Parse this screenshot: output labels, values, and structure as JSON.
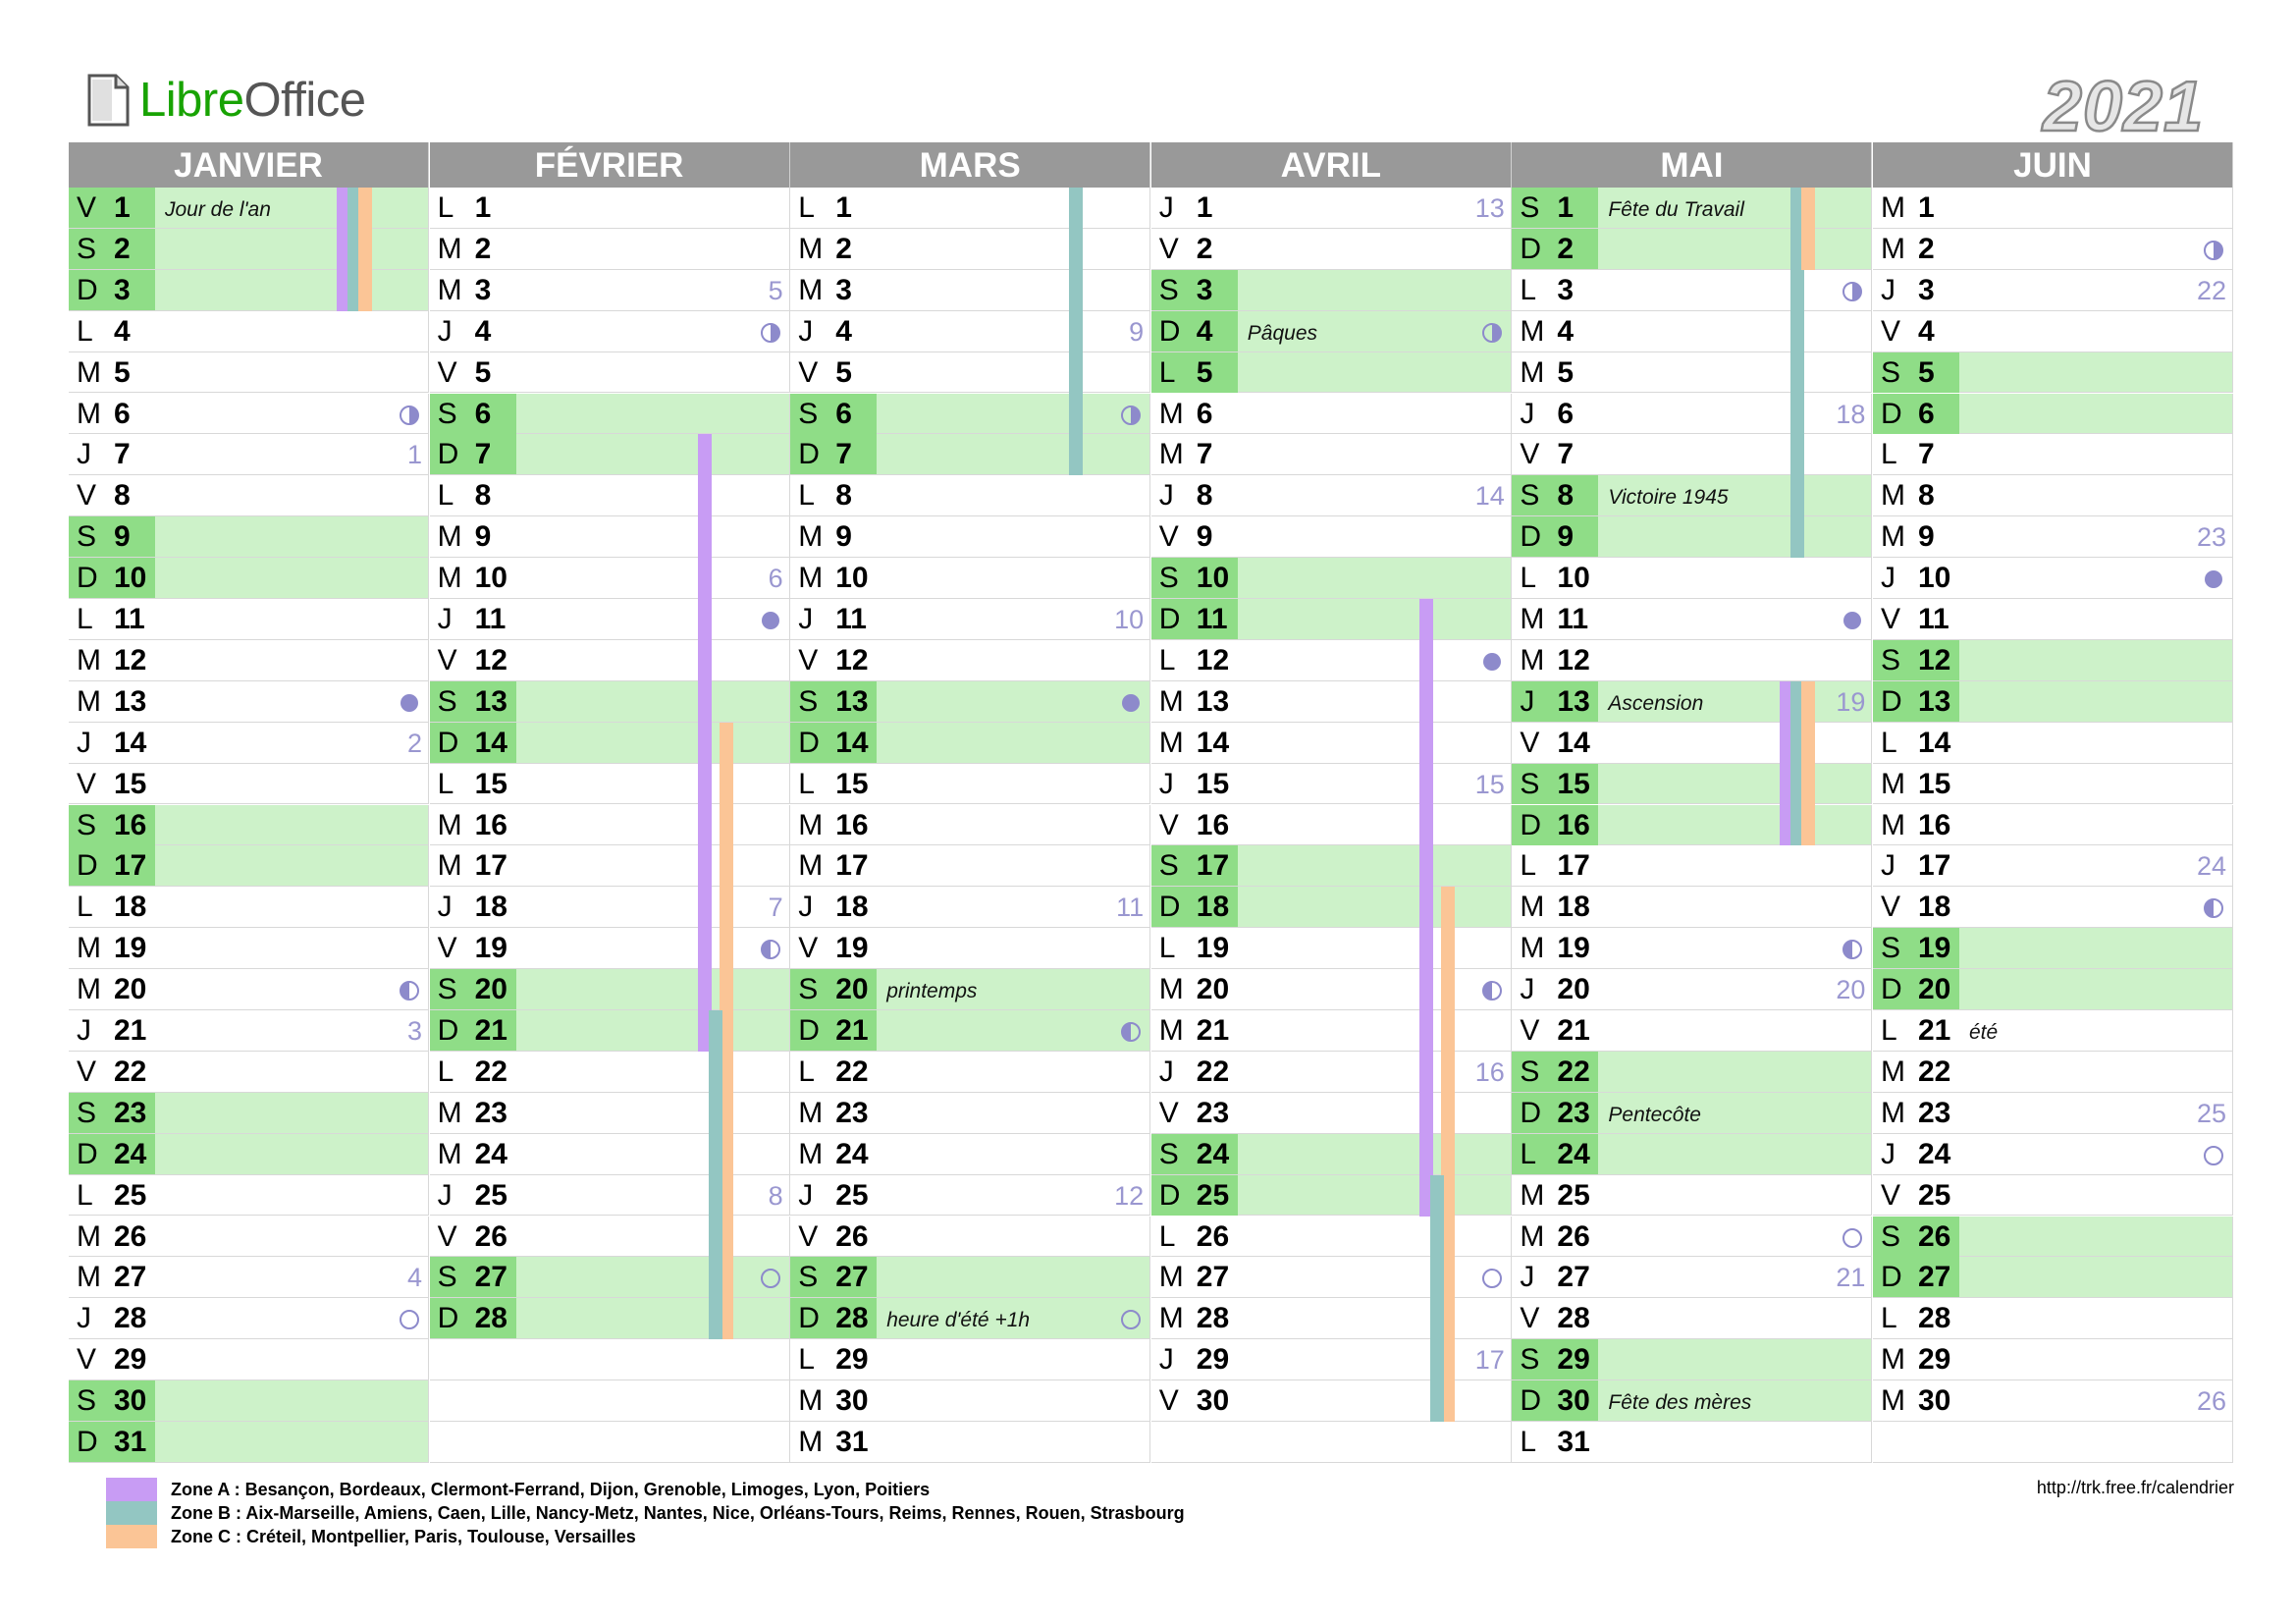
{
  "header": {
    "logo_libre": "Libre",
    "logo_office": "Office",
    "year": "2021"
  },
  "colors": {
    "month_header": "#999999",
    "weekend_row": "#cdf2c9",
    "weekend_key": "#8fdd87",
    "week_number": "#9a97d0",
    "zone_a": "#c89cf4",
    "zone_b": "#93c6c2",
    "zone_c": "#fbc596",
    "logo_libre": "#18a303"
  },
  "months": [
    {
      "name": "JANVIER",
      "days": [
        {
          "l": "V",
          "n": "1",
          "we": true,
          "ev": "Jour de l'an"
        },
        {
          "l": "S",
          "n": "2",
          "we": true
        },
        {
          "l": "D",
          "n": "3",
          "we": true
        },
        {
          "l": "L",
          "n": "4"
        },
        {
          "l": "M",
          "n": "5"
        },
        {
          "l": "M",
          "n": "6",
          "moon": "first-quarter"
        },
        {
          "l": "J",
          "n": "7",
          "wk": "1"
        },
        {
          "l": "V",
          "n": "8"
        },
        {
          "l": "S",
          "n": "9",
          "we": true
        },
        {
          "l": "D",
          "n": "10",
          "we": true
        },
        {
          "l": "L",
          "n": "11"
        },
        {
          "l": "M",
          "n": "12"
        },
        {
          "l": "M",
          "n": "13",
          "moon": "new"
        },
        {
          "l": "J",
          "n": "14",
          "wk": "2"
        },
        {
          "l": "V",
          "n": "15"
        },
        {
          "l": "S",
          "n": "16",
          "we": true
        },
        {
          "l": "D",
          "n": "17",
          "we": true
        },
        {
          "l": "L",
          "n": "18"
        },
        {
          "l": "M",
          "n": "19"
        },
        {
          "l": "M",
          "n": "20",
          "moon": "last-quarter"
        },
        {
          "l": "J",
          "n": "21",
          "wk": "3"
        },
        {
          "l": "V",
          "n": "22"
        },
        {
          "l": "S",
          "n": "23",
          "we": true
        },
        {
          "l": "D",
          "n": "24",
          "we": true
        },
        {
          "l": "L",
          "n": "25"
        },
        {
          "l": "M",
          "n": "26"
        },
        {
          "l": "M",
          "n": "27",
          "wk": "4"
        },
        {
          "l": "J",
          "n": "28",
          "moon": "full"
        },
        {
          "l": "V",
          "n": "29"
        },
        {
          "l": "S",
          "n": "30",
          "we": true
        },
        {
          "l": "D",
          "n": "31",
          "we": true
        }
      ]
    },
    {
      "name": "FÉVRIER",
      "days": [
        {
          "l": "L",
          "n": "1"
        },
        {
          "l": "M",
          "n": "2"
        },
        {
          "l": "M",
          "n": "3",
          "wk": "5"
        },
        {
          "l": "J",
          "n": "4",
          "moon": "first-quarter"
        },
        {
          "l": "V",
          "n": "5"
        },
        {
          "l": "S",
          "n": "6",
          "we": true
        },
        {
          "l": "D",
          "n": "7",
          "we": true
        },
        {
          "l": "L",
          "n": "8"
        },
        {
          "l": "M",
          "n": "9"
        },
        {
          "l": "M",
          "n": "10",
          "wk": "6"
        },
        {
          "l": "J",
          "n": "11",
          "moon": "new"
        },
        {
          "l": "V",
          "n": "12"
        },
        {
          "l": "S",
          "n": "13",
          "we": true
        },
        {
          "l": "D",
          "n": "14",
          "we": true
        },
        {
          "l": "L",
          "n": "15"
        },
        {
          "l": "M",
          "n": "16"
        },
        {
          "l": "M",
          "n": "17"
        },
        {
          "l": "J",
          "n": "18",
          "wk": "7"
        },
        {
          "l": "V",
          "n": "19",
          "moon": "last-quarter"
        },
        {
          "l": "S",
          "n": "20",
          "we": true
        },
        {
          "l": "D",
          "n": "21",
          "we": true
        },
        {
          "l": "L",
          "n": "22"
        },
        {
          "l": "M",
          "n": "23"
        },
        {
          "l": "M",
          "n": "24"
        },
        {
          "l": "J",
          "n": "25",
          "wk": "8"
        },
        {
          "l": "V",
          "n": "26"
        },
        {
          "l": "S",
          "n": "27",
          "we": true,
          "moon": "full"
        },
        {
          "l": "D",
          "n": "28",
          "we": true
        }
      ]
    },
    {
      "name": "MARS",
      "days": [
        {
          "l": "L",
          "n": "1"
        },
        {
          "l": "M",
          "n": "2"
        },
        {
          "l": "M",
          "n": "3"
        },
        {
          "l": "J",
          "n": "4",
          "wk": "9"
        },
        {
          "l": "V",
          "n": "5"
        },
        {
          "l": "S",
          "n": "6",
          "we": true,
          "moon": "first-quarter"
        },
        {
          "l": "D",
          "n": "7",
          "we": true
        },
        {
          "l": "L",
          "n": "8"
        },
        {
          "l": "M",
          "n": "9"
        },
        {
          "l": "M",
          "n": "10"
        },
        {
          "l": "J",
          "n": "11",
          "wk": "10"
        },
        {
          "l": "V",
          "n": "12"
        },
        {
          "l": "S",
          "n": "13",
          "we": true,
          "moon": "new"
        },
        {
          "l": "D",
          "n": "14",
          "we": true
        },
        {
          "l": "L",
          "n": "15"
        },
        {
          "l": "M",
          "n": "16"
        },
        {
          "l": "M",
          "n": "17"
        },
        {
          "l": "J",
          "n": "18",
          "wk": "11"
        },
        {
          "l": "V",
          "n": "19"
        },
        {
          "l": "S",
          "n": "20",
          "we": true,
          "ev": "printemps"
        },
        {
          "l": "D",
          "n": "21",
          "we": true,
          "moon": "last-quarter"
        },
        {
          "l": "L",
          "n": "22"
        },
        {
          "l": "M",
          "n": "23"
        },
        {
          "l": "M",
          "n": "24"
        },
        {
          "l": "J",
          "n": "25",
          "wk": "12"
        },
        {
          "l": "V",
          "n": "26"
        },
        {
          "l": "S",
          "n": "27",
          "we": true
        },
        {
          "l": "D",
          "n": "28",
          "we": true,
          "ev": "heure d'été +1h",
          "moon": "full"
        },
        {
          "l": "L",
          "n": "29"
        },
        {
          "l": "M",
          "n": "30"
        },
        {
          "l": "M",
          "n": "31"
        }
      ]
    },
    {
      "name": "AVRIL",
      "days": [
        {
          "l": "J",
          "n": "1",
          "wk": "13"
        },
        {
          "l": "V",
          "n": "2"
        },
        {
          "l": "S",
          "n": "3",
          "we": true
        },
        {
          "l": "D",
          "n": "4",
          "we": true,
          "ev": "Pâques",
          "moon": "first-quarter"
        },
        {
          "l": "L",
          "n": "5",
          "we": true
        },
        {
          "l": "M",
          "n": "6"
        },
        {
          "l": "M",
          "n": "7"
        },
        {
          "l": "J",
          "n": "8",
          "wk": "14"
        },
        {
          "l": "V",
          "n": "9"
        },
        {
          "l": "S",
          "n": "10",
          "we": true
        },
        {
          "l": "D",
          "n": "11",
          "we": true
        },
        {
          "l": "L",
          "n": "12",
          "moon": "new"
        },
        {
          "l": "M",
          "n": "13"
        },
        {
          "l": "M",
          "n": "14"
        },
        {
          "l": "J",
          "n": "15",
          "wk": "15"
        },
        {
          "l": "V",
          "n": "16"
        },
        {
          "l": "S",
          "n": "17",
          "we": true
        },
        {
          "l": "D",
          "n": "18",
          "we": true
        },
        {
          "l": "L",
          "n": "19"
        },
        {
          "l": "M",
          "n": "20",
          "moon": "last-quarter"
        },
        {
          "l": "M",
          "n": "21"
        },
        {
          "l": "J",
          "n": "22",
          "wk": "16"
        },
        {
          "l": "V",
          "n": "23"
        },
        {
          "l": "S",
          "n": "24",
          "we": true
        },
        {
          "l": "D",
          "n": "25",
          "we": true
        },
        {
          "l": "L",
          "n": "26"
        },
        {
          "l": "M",
          "n": "27",
          "moon": "full"
        },
        {
          "l": "M",
          "n": "28"
        },
        {
          "l": "J",
          "n": "29",
          "wk": "17"
        },
        {
          "l": "V",
          "n": "30"
        }
      ]
    },
    {
      "name": "MAI",
      "days": [
        {
          "l": "S",
          "n": "1",
          "we": true,
          "ev": "Fête du Travail"
        },
        {
          "l": "D",
          "n": "2",
          "we": true
        },
        {
          "l": "L",
          "n": "3",
          "moon": "first-quarter"
        },
        {
          "l": "M",
          "n": "4"
        },
        {
          "l": "M",
          "n": "5"
        },
        {
          "l": "J",
          "n": "6",
          "wk": "18"
        },
        {
          "l": "V",
          "n": "7"
        },
        {
          "l": "S",
          "n": "8",
          "we": true,
          "ev": "Victoire 1945"
        },
        {
          "l": "D",
          "n": "9",
          "we": true
        },
        {
          "l": "L",
          "n": "10"
        },
        {
          "l": "M",
          "n": "11",
          "moon": "new"
        },
        {
          "l": "M",
          "n": "12"
        },
        {
          "l": "J",
          "n": "13",
          "we": true,
          "ev": "Ascension",
          "wk": "19"
        },
        {
          "l": "V",
          "n": "14"
        },
        {
          "l": "S",
          "n": "15",
          "we": true
        },
        {
          "l": "D",
          "n": "16",
          "we": true
        },
        {
          "l": "L",
          "n": "17"
        },
        {
          "l": "M",
          "n": "18"
        },
        {
          "l": "M",
          "n": "19",
          "moon": "last-quarter"
        },
        {
          "l": "J",
          "n": "20",
          "wk": "20"
        },
        {
          "l": "V",
          "n": "21"
        },
        {
          "l": "S",
          "n": "22",
          "we": true
        },
        {
          "l": "D",
          "n": "23",
          "we": true,
          "ev": "Pentecôte"
        },
        {
          "l": "L",
          "n": "24",
          "we": true
        },
        {
          "l": "M",
          "n": "25"
        },
        {
          "l": "M",
          "n": "26",
          "moon": "full"
        },
        {
          "l": "J",
          "n": "27",
          "wk": "21"
        },
        {
          "l": "V",
          "n": "28"
        },
        {
          "l": "S",
          "n": "29",
          "we": true
        },
        {
          "l": "D",
          "n": "30",
          "we": true,
          "ev": "Fête des mères"
        },
        {
          "l": "L",
          "n": "31"
        }
      ]
    },
    {
      "name": "JUIN",
      "days": [
        {
          "l": "M",
          "n": "1"
        },
        {
          "l": "M",
          "n": "2",
          "moon": "first-quarter"
        },
        {
          "l": "J",
          "n": "3",
          "wk": "22"
        },
        {
          "l": "V",
          "n": "4"
        },
        {
          "l": "S",
          "n": "5",
          "we": true
        },
        {
          "l": "D",
          "n": "6",
          "we": true
        },
        {
          "l": "L",
          "n": "7"
        },
        {
          "l": "M",
          "n": "8"
        },
        {
          "l": "M",
          "n": "9",
          "wk": "23"
        },
        {
          "l": "J",
          "n": "10",
          "moon": "new"
        },
        {
          "l": "V",
          "n": "11"
        },
        {
          "l": "S",
          "n": "12",
          "we": true
        },
        {
          "l": "D",
          "n": "13",
          "we": true
        },
        {
          "l": "L",
          "n": "14"
        },
        {
          "l": "M",
          "n": "15"
        },
        {
          "l": "M",
          "n": "16"
        },
        {
          "l": "J",
          "n": "17",
          "wk": "24"
        },
        {
          "l": "V",
          "n": "18",
          "moon": "last-quarter"
        },
        {
          "l": "S",
          "n": "19",
          "we": true
        },
        {
          "l": "D",
          "n": "20",
          "we": true
        },
        {
          "l": "L",
          "n": "21",
          "ev": "été"
        },
        {
          "l": "M",
          "n": "22"
        },
        {
          "l": "M",
          "n": "23",
          "wk": "25"
        },
        {
          "l": "J",
          "n": "24",
          "moon": "full"
        },
        {
          "l": "V",
          "n": "25"
        },
        {
          "l": "S",
          "n": "26",
          "we": true
        },
        {
          "l": "D",
          "n": "27",
          "we": true
        },
        {
          "l": "L",
          "n": "28"
        },
        {
          "l": "M",
          "n": "29"
        },
        {
          "l": "M",
          "n": "30",
          "wk": "26"
        }
      ]
    }
  ],
  "holidays": [
    {
      "month": 0,
      "zone": "a",
      "from": 1,
      "to": 3
    },
    {
      "month": 0,
      "zone": "b",
      "from": 1,
      "to": 3
    },
    {
      "month": 0,
      "zone": "c",
      "from": 1,
      "to": 3
    },
    {
      "month": 1,
      "zone": "a",
      "from": 7,
      "to": 21
    },
    {
      "month": 1,
      "zone": "c",
      "from": 14,
      "to": 28
    },
    {
      "month": 1,
      "zone": "b",
      "from": 21,
      "to": 28
    },
    {
      "month": 2,
      "zone": "b",
      "from": 1,
      "to": 7
    },
    {
      "month": 3,
      "zone": "a",
      "from": 11,
      "to": 25
    },
    {
      "month": 3,
      "zone": "c",
      "from": 18,
      "to": 30
    },
    {
      "month": 3,
      "zone": "b",
      "from": 25,
      "to": 30
    },
    {
      "month": 4,
      "zone": "b",
      "from": 1,
      "to": 9
    },
    {
      "month": 4,
      "zone": "c",
      "from": 1,
      "to": 2
    },
    {
      "month": 4,
      "zone": "a",
      "from": 13,
      "to": 16
    },
    {
      "month": 4,
      "zone": "b",
      "from": 13,
      "to": 16
    },
    {
      "month": 4,
      "zone": "c",
      "from": 13,
      "to": 16
    }
  ],
  "legend": [
    {
      "zone": "a",
      "text": "Zone A : Besançon, Bordeaux, Clermont-Ferrand, Dijon, Grenoble, Limoges, Lyon, Poitiers"
    },
    {
      "zone": "b",
      "text": "Zone B : Aix-Marseille, Amiens, Caen, Lille, Nancy-Metz, Nantes, Nice, Orléans-Tours, Reims, Rennes, Rouen, Strasbourg"
    },
    {
      "zone": "c",
      "text": "Zone C : Créteil, Montpellier, Paris, Toulouse, Versailles"
    }
  ],
  "footer": {
    "url": "http://trk.free.fr/calendrier"
  }
}
